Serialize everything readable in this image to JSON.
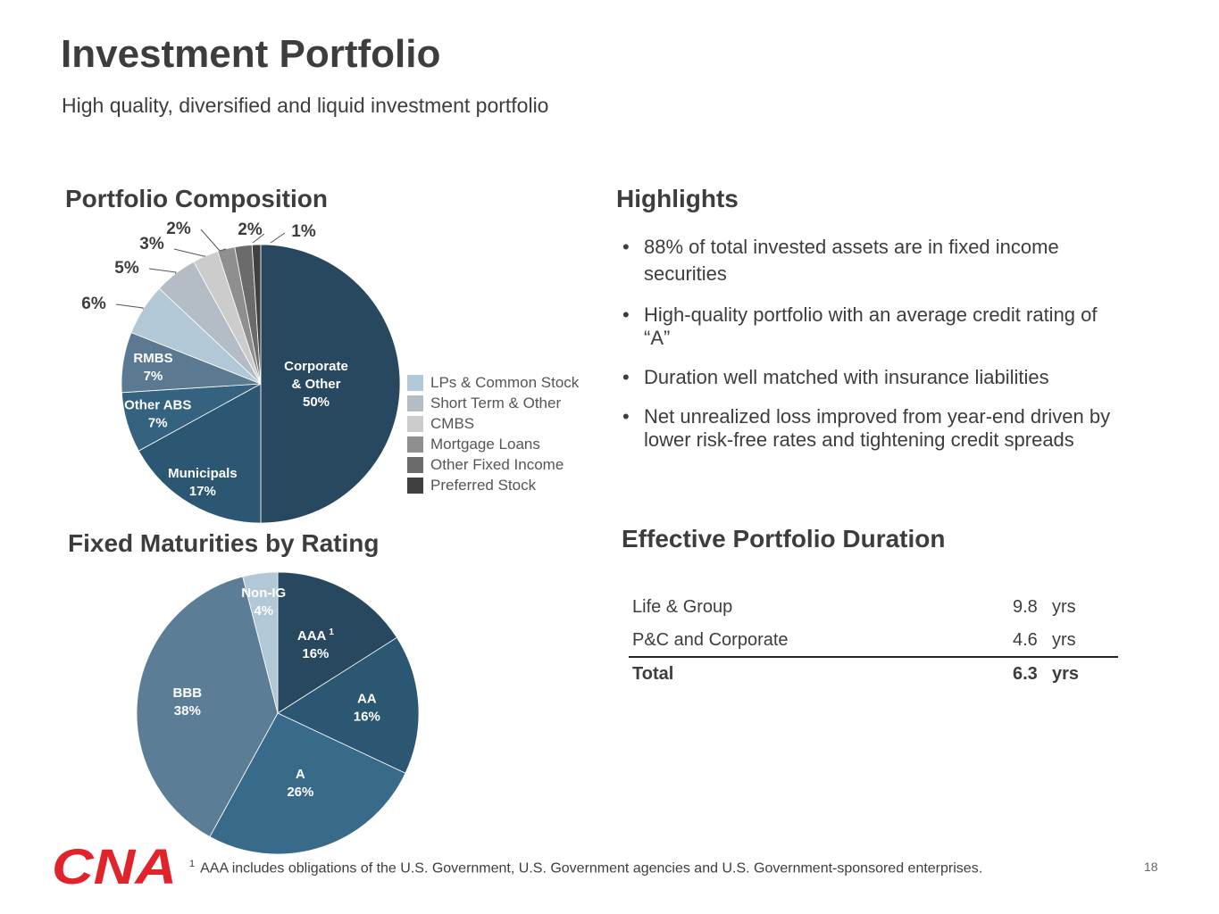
{
  "title": "Investment Portfolio",
  "subtitle": "High quality, diversified and liquid investment portfolio",
  "composition": {
    "heading": "Portfolio Composition",
    "legend": [
      {
        "label": "LPs & Common Stock",
        "color": "#b3c8d6"
      },
      {
        "label": "Short Term & Other",
        "color": "#b4bcc6"
      },
      {
        "label": "CMBS",
        "color": "#cccccc"
      },
      {
        "label": "Mortgage Loans",
        "color": "#8f8f8f"
      },
      {
        "label": "Other Fixed Income",
        "color": "#6b6b6b"
      },
      {
        "label": "Preferred Stock",
        "color": "#404040"
      }
    ]
  },
  "rating": {
    "heading": "Fixed Maturities by Rating",
    "footnote_marker": "1"
  },
  "highlights": {
    "heading": "Highlights",
    "bullet_symbol": "•",
    "items": [
      "88% of total invested assets are in fixed income securities",
      "High-quality portfolio with an average credit rating of “A”",
      "Duration well matched with insurance liabilities",
      "Net unrealized loss improved from year-end driven by lower risk-free rates and tightening credit spreads"
    ]
  },
  "duration": {
    "heading": "Effective Portfolio Duration",
    "rows": [
      {
        "label": "Life & Group",
        "value": "9.8",
        "unit": "yrs"
      },
      {
        "label": "P&C and Corporate",
        "value": "4.6",
        "unit": "yrs"
      },
      {
        "label": "Total",
        "value": "6.3",
        "unit": "yrs"
      }
    ]
  },
  "footnote": {
    "marker": "1",
    "text": "AAA includes obligations of the U.S. Government, U.S. Government agencies and U.S. Government-sponsored enterprises."
  },
  "page_number": "18",
  "logo_text": "CNA",
  "chart_data": [
    {
      "type": "pie",
      "title": "Portfolio Composition",
      "unit": "%",
      "slices": [
        {
          "name": "Corporate & Other",
          "lines": [
            "Corporate",
            "& Other",
            "50%"
          ],
          "value": 50,
          "color": "#27485f",
          "label_inside": true
        },
        {
          "name": "Municipals",
          "lines": [
            "Municipals",
            "17%"
          ],
          "value": 17,
          "color": "#2c5772",
          "label_inside": true
        },
        {
          "name": "Other ABS",
          "lines": [
            "Other ABS",
            "7%"
          ],
          "value": 7,
          "color": "#34627f",
          "label_inside": true
        },
        {
          "name": "RMBS",
          "lines": [
            "RMBS",
            "7%"
          ],
          "value": 7,
          "color": "#5b7990",
          "label_inside": true
        },
        {
          "name": "LPs & Common Stock",
          "lines": [
            "6%"
          ],
          "value": 6,
          "color": "#b3c8d6",
          "label_inside": false
        },
        {
          "name": "Short Term & Other",
          "lines": [
            "5%"
          ],
          "value": 5,
          "color": "#b4bcc6",
          "label_inside": false
        },
        {
          "name": "CMBS",
          "lines": [
            "3%"
          ],
          "value": 3,
          "color": "#cccccc",
          "label_inside": false
        },
        {
          "name": "Mortgage Loans",
          "lines": [
            "2%"
          ],
          "value": 2,
          "color": "#8f8f8f",
          "label_inside": false
        },
        {
          "name": "Other Fixed Income",
          "lines": [
            "2%"
          ],
          "value": 2,
          "color": "#6b6b6b",
          "label_inside": false
        },
        {
          "name": "Preferred Stock",
          "lines": [
            "1%"
          ],
          "value": 1,
          "color": "#404040",
          "label_inside": false
        }
      ]
    },
    {
      "type": "pie",
      "title": "Fixed Maturities by Rating",
      "unit": "%",
      "slices": [
        {
          "name": "AAA",
          "lines": [
            "AAA",
            "16%"
          ],
          "value": 16,
          "color": "#27485f",
          "footnote": "1"
        },
        {
          "name": "AA",
          "lines": [
            "AA",
            "16%"
          ],
          "value": 16,
          "color": "#2c5772"
        },
        {
          "name": "A",
          "lines": [
            "A",
            "26%"
          ],
          "value": 26,
          "color": "#386a8a"
        },
        {
          "name": "BBB",
          "lines": [
            "BBB",
            "38%"
          ],
          "value": 38,
          "color": "#5b7d96"
        },
        {
          "name": "Non-IG",
          "lines": [
            "Non-IG",
            "4%"
          ],
          "value": 4,
          "color": "#b3c8d6"
        }
      ]
    }
  ]
}
